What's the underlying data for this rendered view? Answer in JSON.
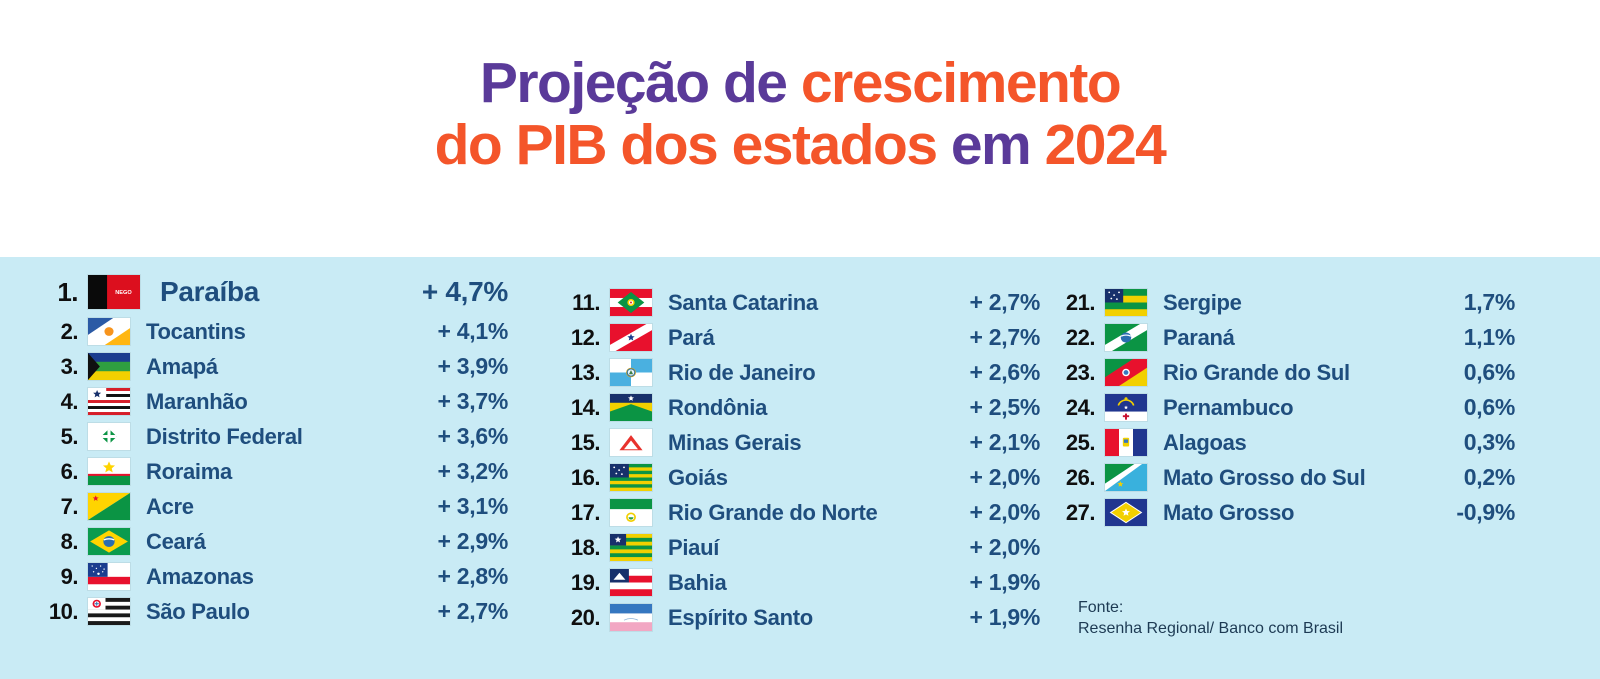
{
  "title": {
    "line1": [
      {
        "text": "Projeção de ",
        "color": "purple"
      },
      {
        "text": "crescimento",
        "color": "orange"
      }
    ],
    "line2": [
      {
        "text": "do PIB dos estados",
        "color": "orange"
      },
      {
        "text": " em ",
        "color": "purple"
      },
      {
        "text": "2024",
        "color": "orange"
      }
    ]
  },
  "colors": {
    "purple": "#5a3a99",
    "orange": "#f4552a",
    "panel_bg": "#c9ebf5",
    "navy": "#1f4e7e",
    "rank": "#0f0f0f",
    "source_text": "#1d3a53"
  },
  "ranking": {
    "columns": [
      {
        "items": [
          {
            "rank": "1.",
            "state": "Paraíba",
            "flag": "paraiba",
            "value": "+ 4,7%",
            "featured": true
          },
          {
            "rank": "2.",
            "state": "Tocantins",
            "flag": "tocantins",
            "value": "+ 4,1%"
          },
          {
            "rank": "3.",
            "state": "Amapá",
            "flag": "amapa",
            "value": "+ 3,9%"
          },
          {
            "rank": "4.",
            "state": "Maranhão",
            "flag": "maranhao",
            "value": "+ 3,7%"
          },
          {
            "rank": "5.",
            "state": "Distrito Federal",
            "flag": "distrito-federal",
            "value": "+ 3,6%"
          },
          {
            "rank": "6.",
            "state": "Roraima",
            "flag": "roraima",
            "value": "+ 3,2%"
          },
          {
            "rank": "7.",
            "state": "Acre",
            "flag": "acre",
            "value": "+ 3,1%"
          },
          {
            "rank": "8.",
            "state": "Ceará",
            "flag": "ceara",
            "value": "+ 2,9%"
          },
          {
            "rank": "9.",
            "state": "Amazonas",
            "flag": "amazonas",
            "value": "+ 2,8%"
          },
          {
            "rank": "10.",
            "state": "São Paulo",
            "flag": "sao-paulo",
            "value": "+ 2,7%"
          }
        ]
      },
      {
        "items": [
          {
            "rank": "11.",
            "state": "Santa Catarina",
            "flag": "santa-catarina",
            "value": "+ 2,7%"
          },
          {
            "rank": "12.",
            "state": "Pará",
            "flag": "para",
            "value": "+ 2,7%"
          },
          {
            "rank": "13.",
            "state": "Rio de Janeiro",
            "flag": "rio-de-janeiro",
            "value": "+ 2,6%"
          },
          {
            "rank": "14.",
            "state": "Rondônia",
            "flag": "rondonia",
            "value": "+ 2,5%"
          },
          {
            "rank": "15.",
            "state": "Minas Gerais",
            "flag": "minas-gerais",
            "value": "+ 2,1%"
          },
          {
            "rank": "16.",
            "state": "Goiás",
            "flag": "goias",
            "value": "+ 2,0%"
          },
          {
            "rank": "17.",
            "state": "Rio Grande do Norte",
            "flag": "rio-grande-do-norte",
            "value": "+ 2,0%"
          },
          {
            "rank": "18.",
            "state": "Piauí",
            "flag": "piaui",
            "value": "+ 2,0%"
          },
          {
            "rank": "19.",
            "state": "Bahia",
            "flag": "bahia",
            "value": "+ 1,9%"
          },
          {
            "rank": "20.",
            "state": "Espírito Santo",
            "flag": "espirito-santo",
            "value": "+ 1,9%"
          }
        ]
      },
      {
        "items": [
          {
            "rank": "21.",
            "state": "Sergipe",
            "flag": "sergipe",
            "value": "1,7%"
          },
          {
            "rank": "22.",
            "state": "Paraná",
            "flag": "parana",
            "value": "1,1%"
          },
          {
            "rank": "23.",
            "state": "Rio Grande do Sul",
            "flag": "rio-grande-do-sul",
            "value": "0,6%"
          },
          {
            "rank": "24.",
            "state": "Pernambuco",
            "flag": "pernambuco",
            "value": "0,6%"
          },
          {
            "rank": "25.",
            "state": "Alagoas",
            "flag": "alagoas",
            "value": "0,3%"
          },
          {
            "rank": "26.",
            "state": "Mato Grosso do Sul",
            "flag": "mato-grosso-do-sul",
            "value": "0,2%"
          },
          {
            "rank": "27.",
            "state": "Mato Grosso",
            "flag": "mato-grosso",
            "value": "-0,9%"
          }
        ]
      }
    ]
  },
  "source": {
    "label": "Fonte:",
    "text": "Resenha Regional/ Banco com Brasil"
  },
  "chart_data": {
    "type": "table",
    "title": "Projeção de crescimento do PIB dos estados em 2024",
    "columns": [
      "rank",
      "estado",
      "crescimento_pct"
    ],
    "rows": [
      [
        1,
        "Paraíba",
        4.7
      ],
      [
        2,
        "Tocantins",
        4.1
      ],
      [
        3,
        "Amapá",
        3.9
      ],
      [
        4,
        "Maranhão",
        3.7
      ],
      [
        5,
        "Distrito Federal",
        3.6
      ],
      [
        6,
        "Roraima",
        3.2
      ],
      [
        7,
        "Acre",
        3.1
      ],
      [
        8,
        "Ceará",
        2.9
      ],
      [
        9,
        "Amazonas",
        2.8
      ],
      [
        10,
        "São Paulo",
        2.7
      ],
      [
        11,
        "Santa Catarina",
        2.7
      ],
      [
        12,
        "Pará",
        2.7
      ],
      [
        13,
        "Rio de Janeiro",
        2.6
      ],
      [
        14,
        "Rondônia",
        2.5
      ],
      [
        15,
        "Minas Gerais",
        2.1
      ],
      [
        16,
        "Goiás",
        2.0
      ],
      [
        17,
        "Rio Grande do Norte",
        2.0
      ],
      [
        18,
        "Piauí",
        2.0
      ],
      [
        19,
        "Bahia",
        1.9
      ],
      [
        20,
        "Espírito Santo",
        1.9
      ],
      [
        21,
        "Sergipe",
        1.7
      ],
      [
        22,
        "Paraná",
        1.1
      ],
      [
        23,
        "Rio Grande do Sul",
        0.6
      ],
      [
        24,
        "Pernambuco",
        0.6
      ],
      [
        25,
        "Alagoas",
        0.3
      ],
      [
        26,
        "Mato Grosso do Sul",
        0.2
      ],
      [
        27,
        "Mato Grosso",
        -0.9
      ]
    ],
    "source": "Resenha Regional/ Banco com Brasil",
    "legend_position": "none",
    "grid": false
  }
}
